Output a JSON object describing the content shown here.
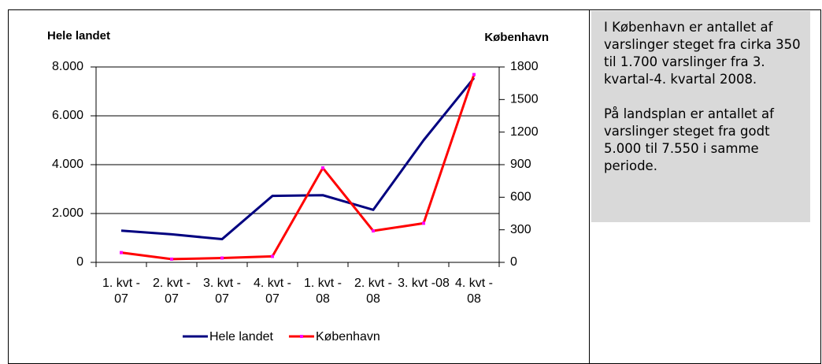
{
  "chart_data": {
    "type": "line",
    "y_title": "Hele landet",
    "y2_title": "København",
    "categories": [
      "1. kvt - 07",
      "2. kvt - 07",
      "3. kvt - 07",
      "4. kvt - 07",
      "1. kvt - 08",
      "2. kvt - 08",
      "3. kvt -08",
      "4. kvt - 08"
    ],
    "series": [
      {
        "name": "Hele landet",
        "color": "#000080",
        "values": [
          1300,
          1150,
          950,
          2720,
          2750,
          2150,
          5000,
          7550
        ]
      },
      {
        "name": "København",
        "color": "#ff0000",
        "axis": "y2",
        "marker_color": "#ff00ff",
        "values": [
          90,
          30,
          40,
          55,
          870,
          290,
          360,
          1730
        ]
      }
    ],
    "ylim": [
      0,
      8000
    ],
    "yticks": [
      0,
      {
        "value": 2000,
        "label": "2.000"
      },
      {
        "value": 4000,
        "label": "4.000"
      },
      {
        "value": 6000,
        "label": "6.000"
      },
      {
        "value": 8000,
        "label": "8.000"
      }
    ],
    "y2lim": [
      0,
      1800
    ],
    "y2ticks": [
      0,
      300,
      600,
      900,
      1200,
      1500,
      1800
    ],
    "grid": true
  },
  "note": {
    "paragraphs": [
      "I København er antallet af varslinger steget fra cirka 350 til 1.700 varslinger fra 3. kvartal-4. kvartal 2008.",
      "På landsplan er antallet af varslinger steget fra godt 5.000 til 7.550 i samme periode."
    ]
  }
}
